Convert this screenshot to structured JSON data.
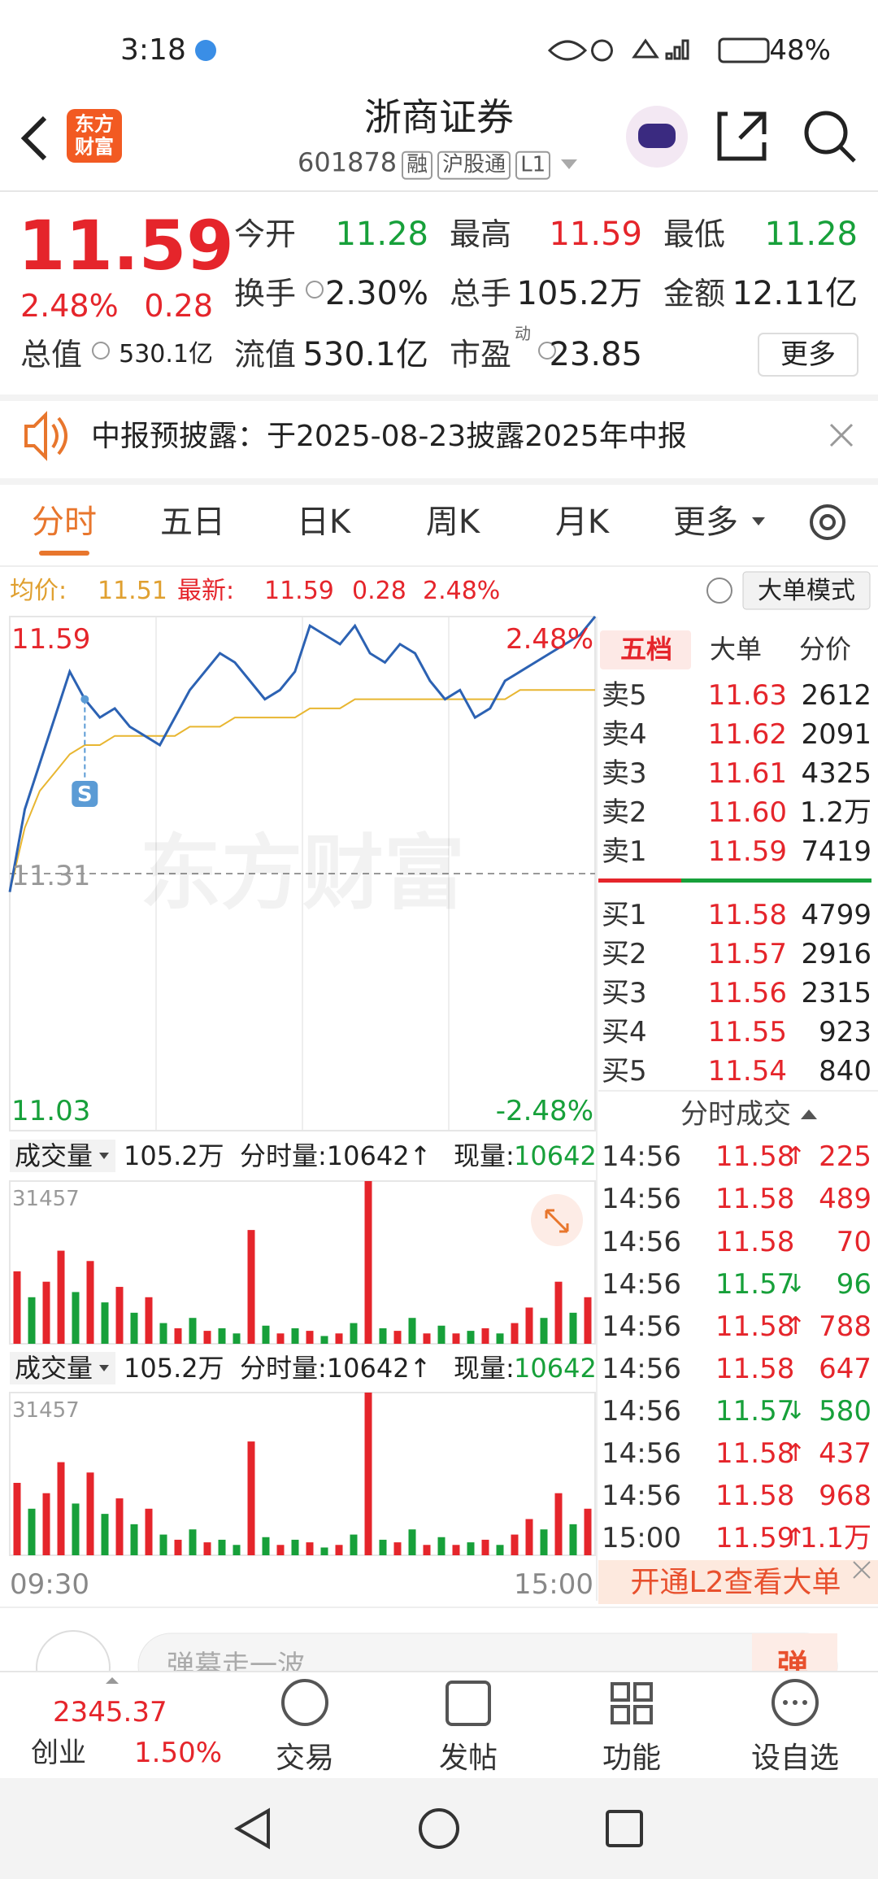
{
  "status": {
    "time": "3:18",
    "battery": "48%"
  },
  "header": {
    "logo": "东方财富",
    "title": "浙商证券",
    "code": "601878",
    "tags": [
      "融",
      "沪股通",
      "L1"
    ]
  },
  "quote": {
    "price": "11.59",
    "change_pct": "2.48%",
    "change": "0.28",
    "more": "更多",
    "fields": [
      {
        "label": "今开",
        "value": "11.28",
        "color": "#17a03a"
      },
      {
        "label": "最高",
        "value": "11.59",
        "color": "#e5252b"
      },
      {
        "label": "最低",
        "value": "11.28",
        "color": "#17a03a"
      },
      {
        "label": "换手",
        "value": "2.30%",
        "color": "#222222"
      },
      {
        "label": "总手",
        "value": "105.2万",
        "color": "#222222"
      },
      {
        "label": "金额",
        "value": "12.11亿",
        "color": "#222222"
      },
      {
        "label": "总值",
        "value": "530.1亿",
        "color": "#222222"
      },
      {
        "label": "流值",
        "value": "530.1亿",
        "color": "#222222"
      },
      {
        "label": "市盈",
        "note": "动",
        "value": "23.85",
        "color": "#222222"
      }
    ]
  },
  "notice": {
    "text": "中报预披露：于2025-08-23披露2025年中报"
  },
  "tabs": [
    "分时",
    "五日",
    "日K",
    "周K",
    "月K",
    "更多"
  ],
  "info_bar": {
    "avg_label": "均价:",
    "avg": "11.51",
    "last_label": "最新:",
    "last": "11.59",
    "change": "0.28",
    "pct": "2.48%",
    "mode": "大单模式"
  },
  "chart_data": [
    {
      "type": "line",
      "ylim": [
        11.03,
        11.59
      ],
      "yticks": [
        11.03,
        11.31,
        11.59
      ],
      "pct_labels": [
        "2.48%",
        "-2.48%"
      ],
      "watermark": "东方财富",
      "marker": "S",
      "xtick_labels": [
        "09:30",
        "15:00"
      ],
      "series": [
        {
          "color": "#2c62b3",
          "values": [
            11.29,
            11.38,
            11.43,
            11.48,
            11.53,
            11.5,
            11.48,
            11.49,
            11.47,
            11.46,
            11.45,
            11.48,
            11.51,
            11.53,
            11.55,
            11.54,
            11.52,
            11.5,
            11.51,
            11.53,
            11.58,
            11.57,
            11.56,
            11.58,
            11.55,
            11.54,
            11.56,
            11.55,
            11.52,
            11.5,
            11.51,
            11.48,
            11.49,
            11.52,
            11.53,
            11.54,
            11.55,
            11.56,
            11.57,
            11.59
          ]
        },
        {
          "color": "#e8b631",
          "values": [
            11.29,
            11.36,
            11.4,
            11.42,
            11.44,
            11.45,
            11.45,
            11.46,
            11.46,
            11.46,
            11.46,
            11.46,
            11.47,
            11.47,
            11.47,
            11.48,
            11.48,
            11.48,
            11.48,
            11.48,
            11.49,
            11.49,
            11.49,
            11.5,
            11.5,
            11.5,
            11.5,
            11.5,
            11.5,
            11.5,
            11.5,
            11.5,
            11.5,
            11.5,
            11.51,
            11.51,
            11.51,
            11.51,
            11.51,
            11.51
          ]
        }
      ]
    },
    {
      "type": "bar",
      "header": {
        "label": "成交量",
        "total": "105.2万",
        "minute": "分时量:10642↑",
        "now_label": "现量:",
        "now": "10642"
      },
      "ylim": [
        0,
        31457
      ],
      "yticks": [
        31457
      ],
      "values": [
        14000,
        9000,
        12000,
        18000,
        10000,
        16000,
        8000,
        11000,
        6000,
        9000,
        4000,
        3000,
        5000,
        2500,
        3000,
        2000,
        22000,
        3500,
        2000,
        3000,
        2500,
        1500,
        2000,
        4000,
        31457,
        3000,
        2500,
        5000,
        2000,
        3500,
        2000,
        2500,
        3000,
        2000,
        4000,
        7000,
        5000,
        12000,
        6000,
        9000
      ],
      "colors": [
        "#e5252b",
        "#17a03a",
        "#e5252b",
        "#e5252b",
        "#17a03a",
        "#e5252b",
        "#17a03a",
        "#e5252b",
        "#17a03a",
        "#e5252b",
        "#17a03a",
        "#e5252b",
        "#17a03a",
        "#e5252b",
        "#17a03a",
        "#17a03a",
        "#e5252b",
        "#17a03a",
        "#e5252b",
        "#17a03a",
        "#e5252b",
        "#17a03a",
        "#e5252b",
        "#17a03a",
        "#e5252b",
        "#17a03a",
        "#e5252b",
        "#17a03a",
        "#e5252b",
        "#17a03a",
        "#e5252b",
        "#17a03a",
        "#e5252b",
        "#17a03a",
        "#e5252b",
        "#e5252b",
        "#17a03a",
        "#e5252b",
        "#17a03a",
        "#e5252b"
      ]
    },
    {
      "type": "bar",
      "header": {
        "label": "成交量",
        "total": "105.2万",
        "minute": "分时量:10642↑",
        "now_label": "现量:",
        "now": "10642"
      },
      "ylim": [
        0,
        31457
      ],
      "yticks": [
        31457
      ],
      "values": [
        14000,
        9000,
        12000,
        18000,
        10000,
        16000,
        8000,
        11000,
        6000,
        9000,
        4000,
        3000,
        5000,
        2500,
        3000,
        2000,
        22000,
        3500,
        2000,
        3000,
        2500,
        1500,
        2000,
        4000,
        31457,
        3000,
        2500,
        5000,
        2000,
        3500,
        2000,
        2500,
        3000,
        2000,
        4000,
        7000,
        5000,
        12000,
        6000,
        9000
      ],
      "colors": [
        "#e5252b",
        "#17a03a",
        "#e5252b",
        "#e5252b",
        "#17a03a",
        "#e5252b",
        "#17a03a",
        "#e5252b",
        "#17a03a",
        "#e5252b",
        "#17a03a",
        "#e5252b",
        "#17a03a",
        "#e5252b",
        "#17a03a",
        "#17a03a",
        "#e5252b",
        "#17a03a",
        "#e5252b",
        "#17a03a",
        "#e5252b",
        "#17a03a",
        "#e5252b",
        "#17a03a",
        "#e5252b",
        "#17a03a",
        "#e5252b",
        "#17a03a",
        "#e5252b",
        "#17a03a",
        "#e5252b",
        "#17a03a",
        "#e5252b",
        "#17a03a",
        "#e5252b",
        "#e5252b",
        "#17a03a",
        "#e5252b",
        "#17a03a",
        "#e5252b"
      ]
    }
  ],
  "order_book": {
    "tabs": [
      "五档",
      "大单",
      "分价"
    ],
    "asks": [
      {
        "level": "卖5",
        "price": "11.63",
        "volume": "2612"
      },
      {
        "level": "卖4",
        "price": "11.62",
        "volume": "2091"
      },
      {
        "level": "卖3",
        "price": "11.61",
        "volume": "4325"
      },
      {
        "level": "卖2",
        "price": "11.60",
        "volume": "1.2万"
      },
      {
        "level": "卖1",
        "price": "11.59",
        "volume": "7419"
      }
    ],
    "bids": [
      {
        "level": "买1",
        "price": "11.58",
        "volume": "4799"
      },
      {
        "level": "买2",
        "price": "11.57",
        "volume": "2916"
      },
      {
        "level": "买3",
        "price": "11.56",
        "volume": "2315"
      },
      {
        "level": "买4",
        "price": "11.55",
        "volume": "923"
      },
      {
        "level": "买5",
        "price": "11.54",
        "volume": "840"
      }
    ]
  },
  "trades": {
    "title": "分时成交",
    "banner": "开通L2查看大单",
    "rows": [
      {
        "time": "14:56",
        "price": "11.58",
        "arrow": "↑",
        "volume": "225",
        "color": "#e5252b"
      },
      {
        "time": "14:56",
        "price": "11.58",
        "volume": "489",
        "color": "#e5252b"
      },
      {
        "time": "14:56",
        "price": "11.58",
        "volume": "70",
        "color": "#e5252b"
      },
      {
        "time": "14:56",
        "price": "11.57",
        "arrow": "↓",
        "volume": "96",
        "color": "#17a03a"
      },
      {
        "time": "14:56",
        "price": "11.58",
        "arrow": "↑",
        "volume": "788",
        "color": "#e5252b"
      },
      {
        "time": "14:56",
        "price": "11.58",
        "volume": "647",
        "color": "#e5252b"
      },
      {
        "time": "14:56",
        "price": "11.57",
        "arrow": "↓",
        "volume": "580",
        "color": "#17a03a"
      },
      {
        "time": "14:56",
        "price": "11.58",
        "arrow": "↑",
        "volume": "437",
        "color": "#e5252b"
      },
      {
        "time": "14:56",
        "price": "11.58",
        "volume": "968",
        "color": "#e5252b"
      },
      {
        "time": "15:00",
        "price": "11.59",
        "arrow": "↑",
        "volume": "1.1万",
        "color": "#e5252b"
      }
    ]
  },
  "comment": {
    "placeholder": "弹幕走一波",
    "button": "弹"
  },
  "bottom": {
    "index_value": "2345.37",
    "index_name": "创业",
    "index_pct": "1.50%",
    "nav": [
      "交易",
      "发帖",
      "功能",
      "设自选"
    ]
  }
}
